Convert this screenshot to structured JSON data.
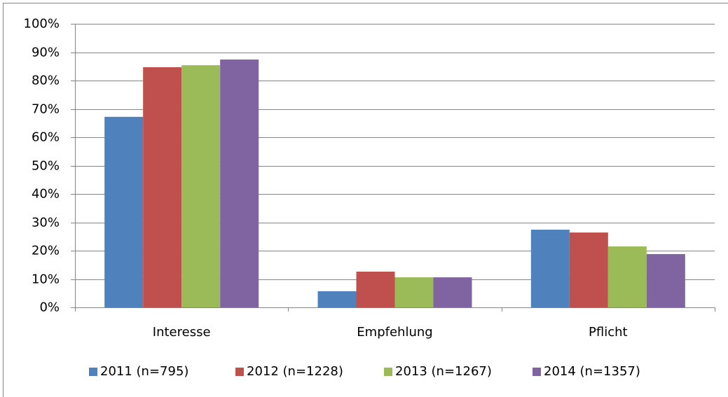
{
  "chart_data": {
    "type": "bar",
    "categories": [
      "Interesse",
      "Empfehlung",
      "Pflicht"
    ],
    "series": [
      {
        "name": "2011 (n=795)",
        "color": "#4f81bd",
        "values": [
          67.2,
          5.7,
          27.4
        ]
      },
      {
        "name": "2012 (n=1228)",
        "color": "#c0504d",
        "values": [
          84.7,
          12.6,
          26.4
        ]
      },
      {
        "name": "2013 (n=1267)",
        "color": "#9bbb59",
        "values": [
          85.4,
          10.6,
          21.5
        ]
      },
      {
        "name": "2014 (n=1357)",
        "color": "#8064a2",
        "values": [
          87.4,
          10.6,
          18.8
        ]
      }
    ],
    "ylim": [
      0,
      100
    ],
    "yticks": [
      {
        "value": 0,
        "label": "0%"
      },
      {
        "value": 10,
        "label": "10%"
      },
      {
        "value": 20,
        "label": "20%"
      },
      {
        "value": 30,
        "label": "30%"
      },
      {
        "value": 40,
        "label": "40%"
      },
      {
        "value": 50,
        "label": "50%"
      },
      {
        "value": 60,
        "label": "60%"
      },
      {
        "value": 70,
        "label": "70%"
      },
      {
        "value": 80,
        "label": "80%"
      },
      {
        "value": 90,
        "label": "90%"
      },
      {
        "value": 100,
        "label": "100%"
      }
    ],
    "grid": true,
    "legend": "bottom"
  }
}
